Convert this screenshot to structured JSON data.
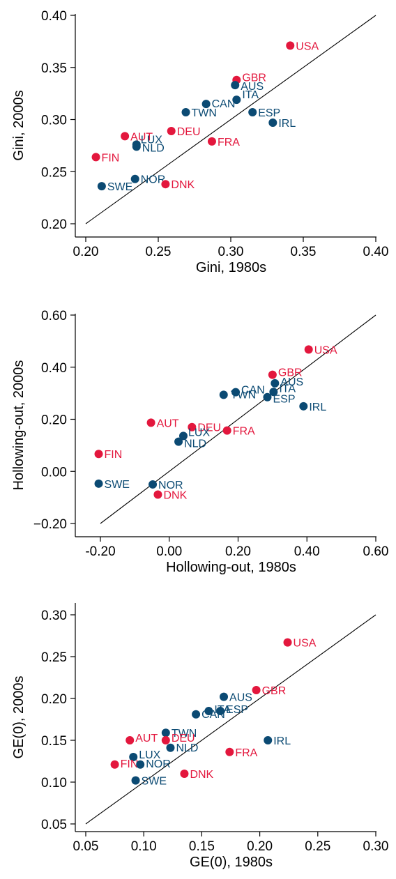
{
  "colors": {
    "red": "#e3173d",
    "blue": "#0b4a73"
  },
  "chart_data": [
    {
      "type": "scatter",
      "xlabel": "Gini, 1980s",
      "ylabel": "Gini, 2000s",
      "xlim": [
        0.2,
        0.4
      ],
      "ylim": [
        0.2,
        0.4
      ],
      "xticks": [
        0.2,
        0.25,
        0.3,
        0.35,
        0.4
      ],
      "yticks": [
        0.2,
        0.25,
        0.3,
        0.35,
        0.4
      ],
      "xtick_labels": [
        "0.20",
        "0.25",
        "0.30",
        "0.35",
        "0.40"
      ],
      "ytick_labels": [
        "0.20",
        "0.25",
        "0.30",
        "0.35",
        "0.40"
      ],
      "reference_line": [
        [
          0.2,
          0.2
        ],
        [
          0.4,
          0.4
        ]
      ],
      "points": [
        {
          "label": "USA",
          "x": 0.341,
          "y": 0.371,
          "color": "red"
        },
        {
          "label": "GBR",
          "x": 0.304,
          "y": 0.338,
          "color": "red"
        },
        {
          "label": "AUS",
          "x": 0.303,
          "y": 0.333,
          "color": "blue"
        },
        {
          "label": "ITA",
          "x": 0.304,
          "y": 0.319,
          "color": "blue"
        },
        {
          "label": "CAN",
          "x": 0.283,
          "y": 0.315,
          "color": "blue"
        },
        {
          "label": "ESP",
          "x": 0.315,
          "y": 0.307,
          "color": "blue"
        },
        {
          "label": "TWN",
          "x": 0.269,
          "y": 0.307,
          "color": "blue"
        },
        {
          "label": "IRL",
          "x": 0.329,
          "y": 0.297,
          "color": "blue"
        },
        {
          "label": "DEU",
          "x": 0.259,
          "y": 0.289,
          "color": "red"
        },
        {
          "label": "AUT",
          "x": 0.227,
          "y": 0.284,
          "color": "red"
        },
        {
          "label": "FRA",
          "x": 0.287,
          "y": 0.279,
          "color": "red"
        },
        {
          "label": "LUX",
          "x": 0.235,
          "y": 0.276,
          "color": "blue"
        },
        {
          "label": "NLD",
          "x": 0.235,
          "y": 0.274,
          "color": "blue"
        },
        {
          "label": "FIN",
          "x": 0.207,
          "y": 0.264,
          "color": "red"
        },
        {
          "label": "NOR",
          "x": 0.234,
          "y": 0.243,
          "color": "blue"
        },
        {
          "label": "DNK",
          "x": 0.255,
          "y": 0.238,
          "color": "red"
        },
        {
          "label": "SWE",
          "x": 0.211,
          "y": 0.236,
          "color": "blue"
        }
      ]
    },
    {
      "type": "scatter",
      "xlabel": "Hollowing-out, 1980s",
      "ylabel": "Hollowing-out, 2000s",
      "xlim": [
        -0.2,
        0.6
      ],
      "ylim": [
        -0.2,
        0.6
      ],
      "xticks": [
        -0.2,
        0.0,
        0.2,
        0.4,
        0.6
      ],
      "yticks": [
        -0.2,
        0.0,
        0.2,
        0.4,
        0.6
      ],
      "xtick_labels": [
        "-0.20",
        "0.00",
        "0.20",
        "0.40",
        "0.60"
      ],
      "ytick_labels": [
        "−0.20",
        "0.00",
        "0.20",
        "0.40",
        "0.60"
      ],
      "reference_line": [
        [
          -0.2,
          -0.2
        ],
        [
          0.6,
          0.6
        ]
      ],
      "points": [
        {
          "label": "USA",
          "x": 0.405,
          "y": 0.468,
          "color": "red"
        },
        {
          "label": "GBR",
          "x": 0.3,
          "y": 0.371,
          "color": "red"
        },
        {
          "label": "AUS",
          "x": 0.307,
          "y": 0.338,
          "color": "blue"
        },
        {
          "label": "ITA",
          "x": 0.303,
          "y": 0.305,
          "color": "blue"
        },
        {
          "label": "CAN",
          "x": 0.193,
          "y": 0.304,
          "color": "blue"
        },
        {
          "label": "TWN",
          "x": 0.158,
          "y": 0.294,
          "color": "blue"
        },
        {
          "label": "ESP",
          "x": 0.285,
          "y": 0.285,
          "color": "blue"
        },
        {
          "label": "IRL",
          "x": 0.39,
          "y": 0.25,
          "color": "blue"
        },
        {
          "label": "AUT",
          "x": -0.053,
          "y": 0.187,
          "color": "red"
        },
        {
          "label": "DEU",
          "x": 0.066,
          "y": 0.17,
          "color": "red"
        },
        {
          "label": "FRA",
          "x": 0.168,
          "y": 0.157,
          "color": "red"
        },
        {
          "label": "LUX",
          "x": 0.041,
          "y": 0.136,
          "color": "blue"
        },
        {
          "label": "NLD",
          "x": 0.027,
          "y": 0.114,
          "color": "blue"
        },
        {
          "label": "FIN",
          "x": -0.205,
          "y": 0.067,
          "color": "red"
        },
        {
          "label": "SWE",
          "x": -0.205,
          "y": -0.047,
          "color": "blue"
        },
        {
          "label": "NOR",
          "x": -0.048,
          "y": -0.05,
          "color": "blue"
        },
        {
          "label": "DNK",
          "x": -0.033,
          "y": -0.089,
          "color": "red"
        }
      ]
    },
    {
      "type": "scatter",
      "xlabel": "GE(0), 1980s",
      "ylabel": "GE(0), 2000s",
      "xlim": [
        0.05,
        0.3
      ],
      "ylim": [
        0.05,
        0.3
      ],
      "xticks": [
        0.05,
        0.1,
        0.15,
        0.2,
        0.25,
        0.3
      ],
      "yticks": [
        0.05,
        0.1,
        0.15,
        0.2,
        0.25,
        0.3
      ],
      "xtick_labels": [
        "0.05",
        "0.10",
        "0.15",
        "0.20",
        "0.25",
        "0.30"
      ],
      "ytick_labels": [
        "0.05",
        "0.10",
        "0.15",
        "0.20",
        "0.25",
        "0.30"
      ],
      "reference_line": [
        [
          0.05,
          0.05
        ],
        [
          0.3,
          0.3
        ]
      ],
      "points": [
        {
          "label": "USA",
          "x": 0.224,
          "y": 0.267,
          "color": "red"
        },
        {
          "label": "GBR",
          "x": 0.197,
          "y": 0.21,
          "color": "red"
        },
        {
          "label": "AUS",
          "x": 0.169,
          "y": 0.202,
          "color": "blue"
        },
        {
          "label": "ITA",
          "x": 0.156,
          "y": 0.185,
          "color": "blue"
        },
        {
          "label": "ESP",
          "x": 0.166,
          "y": 0.185,
          "color": "blue"
        },
        {
          "label": "CAN",
          "x": 0.145,
          "y": 0.181,
          "color": "blue"
        },
        {
          "label": "TWN",
          "x": 0.119,
          "y": 0.159,
          "color": "blue"
        },
        {
          "label": "AUT",
          "x": 0.088,
          "y": 0.15,
          "color": "red"
        },
        {
          "label": "DEU",
          "x": 0.119,
          "y": 0.15,
          "color": "red"
        },
        {
          "label": "IRL",
          "x": 0.207,
          "y": 0.15,
          "color": "blue"
        },
        {
          "label": "NLD",
          "x": 0.123,
          "y": 0.141,
          "color": "blue"
        },
        {
          "label": "FRA",
          "x": 0.174,
          "y": 0.136,
          "color": "red"
        },
        {
          "label": "LUX",
          "x": 0.091,
          "y": 0.13,
          "color": "blue"
        },
        {
          "label": "FIN",
          "x": 0.075,
          "y": 0.121,
          "color": "red"
        },
        {
          "label": "NOR",
          "x": 0.097,
          "y": 0.121,
          "color": "blue"
        },
        {
          "label": "DNK",
          "x": 0.135,
          "y": 0.11,
          "color": "red"
        },
        {
          "label": "SWE",
          "x": 0.093,
          "y": 0.102,
          "color": "blue"
        }
      ]
    }
  ]
}
